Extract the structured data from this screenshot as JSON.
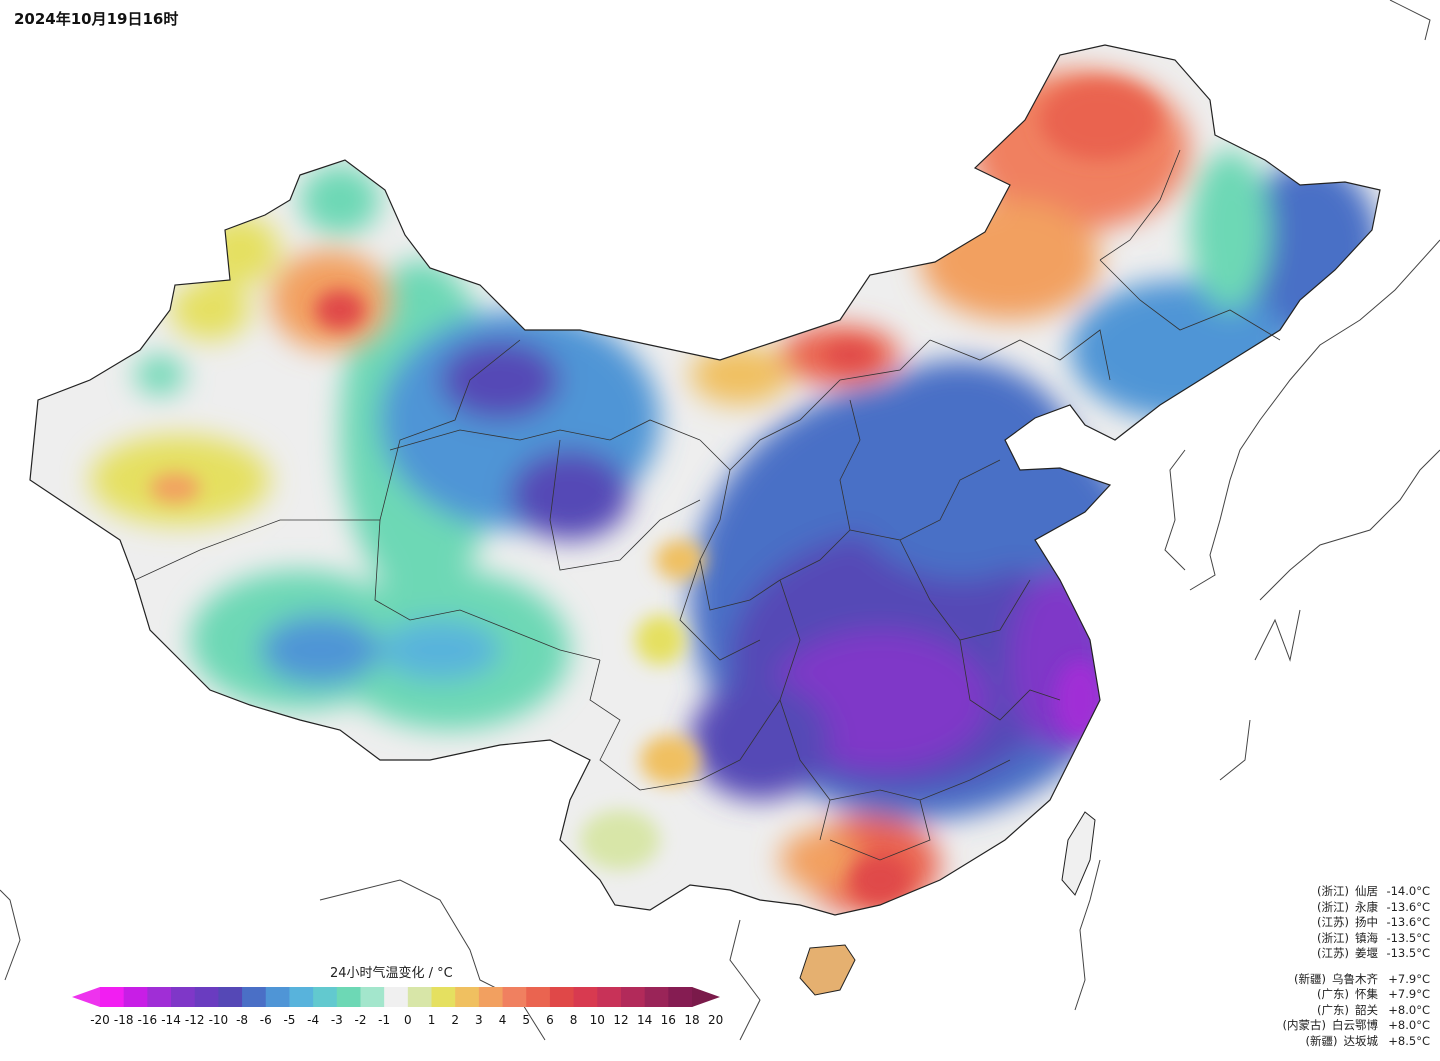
{
  "header": {
    "title": "2024年10月19日16时"
  },
  "legend": {
    "title": "24小时气温变化 / °C",
    "ticks": [
      "-20",
      "-18",
      "-16",
      "-14",
      "-12",
      "-10",
      "-8",
      "-6",
      "-5",
      "-4",
      "-3",
      "-2",
      "-1",
      "0",
      "1",
      "2",
      "3",
      "4",
      "5",
      "6",
      "8",
      "10",
      "12",
      "14",
      "16",
      "18",
      "20"
    ],
    "colors": [
      "#f21ef2",
      "#c81ee6",
      "#a02ed6",
      "#7f37c8",
      "#6a3cc0",
      "#5548b6",
      "#4a6fc6",
      "#4f95d6",
      "#58b3dc",
      "#62c9cf",
      "#6dd8b5",
      "#a3e6cc",
      "#f0f0f0",
      "#d8e6a8",
      "#e5e060",
      "#f0c060",
      "#f2a060",
      "#f08060",
      "#ea6450",
      "#e04848",
      "#d83a50",
      "#c83258",
      "#b22a5a",
      "#9a2458",
      "#851c52"
    ],
    "arrow_left_color": "#ee33ee",
    "arrow_right_color": "#7a1a4a"
  },
  "stats": {
    "cooling": [
      {
        "province": "(浙江)",
        "city": "仙居",
        "value": "-14.0°C"
      },
      {
        "province": "(浙江)",
        "city": "永康",
        "value": "-13.6°C"
      },
      {
        "province": "(江苏)",
        "city": "扬中",
        "value": "-13.6°C"
      },
      {
        "province": "(浙江)",
        "city": "镇海",
        "value": "-13.5°C"
      },
      {
        "province": "(江苏)",
        "city": "姜堰",
        "value": "-13.5°C"
      }
    ],
    "warming": [
      {
        "province": "(新疆)",
        "city": "乌鲁木齐",
        "value": "+7.9°C"
      },
      {
        "province": "(广东)",
        "city": "怀集",
        "value": "+7.9°C"
      },
      {
        "province": "(广东)",
        "city": "韶关",
        "value": "+8.0°C"
      },
      {
        "province": "(内蒙古)",
        "city": "白云鄂博",
        "value": "+8.0°C"
      },
      {
        "province": "(新疆)",
        "city": "达坂城",
        "value": "+8.5°C"
      }
    ]
  }
}
